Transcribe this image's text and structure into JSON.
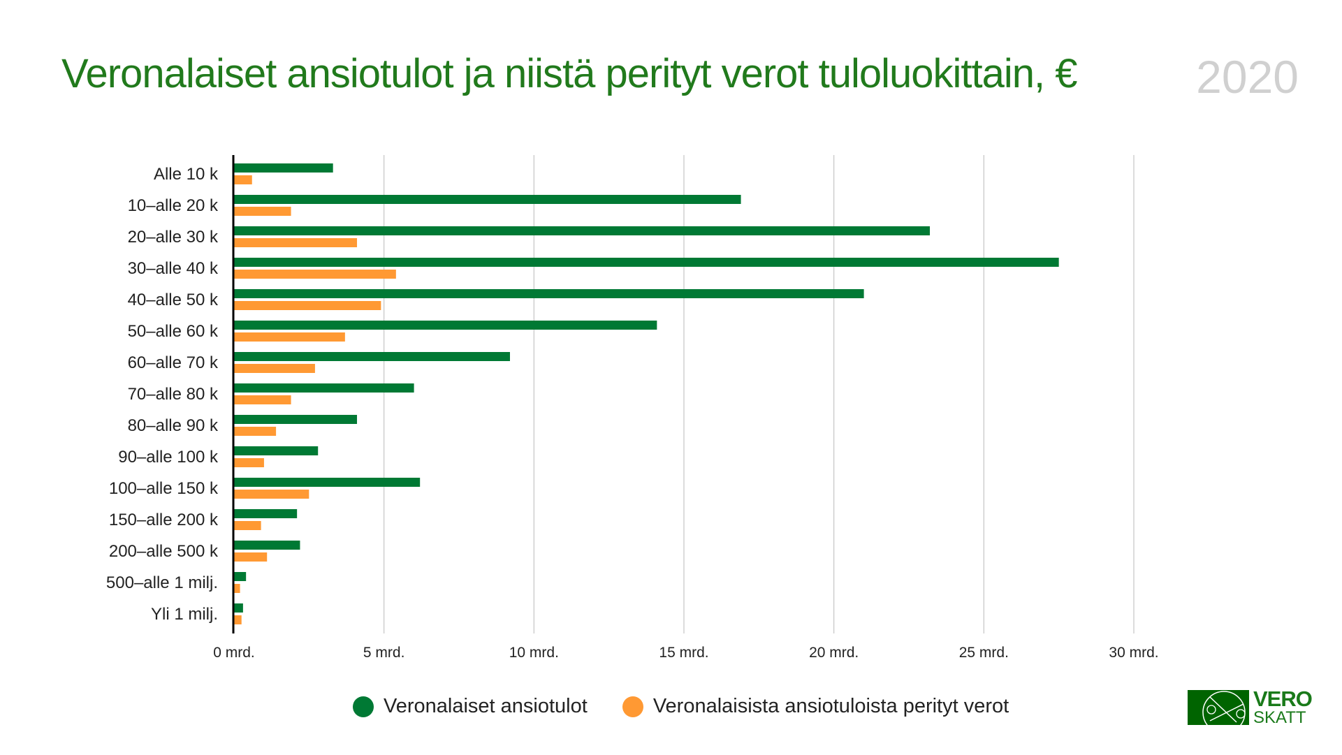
{
  "title": "Veronalaiset ansiotulot ja niistä perityt verot tuloluokittain, €",
  "year": "2020",
  "logo": {
    "line1": "VERO",
    "line2": "SKATT"
  },
  "colors": {
    "income": "#007934",
    "tax": "#ff9933",
    "title": "#217a1c"
  },
  "chart_data": {
    "type": "bar",
    "orientation": "horizontal",
    "categories": [
      "Alle 10 k",
      "10–alle 20 k",
      "20–alle 30 k",
      "30–alle 40 k",
      "40–alle 50 k",
      "50–alle 60 k",
      "60–alle 70 k",
      "70–alle 80 k",
      "80–alle 90 k",
      "90–alle 100 k",
      "100–alle 150 k",
      "150–alle 200 k",
      "200–alle 500 k",
      "500–alle 1 milj.",
      "Yli 1 milj."
    ],
    "series": [
      {
        "name": "Veronalaiset ansiotulot",
        "values": [
          3.3,
          16.9,
          23.2,
          27.5,
          21.0,
          14.1,
          9.2,
          6.0,
          4.1,
          2.8,
          6.2,
          2.1,
          2.2,
          0.4,
          0.3
        ]
      },
      {
        "name": "Veronalaisista ansiotuloista perityt verot",
        "values": [
          0.6,
          1.9,
          4.1,
          5.4,
          4.9,
          3.7,
          2.7,
          1.9,
          1.4,
          1.0,
          2.5,
          0.9,
          1.1,
          0.2,
          0.25
        ]
      }
    ],
    "xlim": [
      0,
      30
    ],
    "xticks": [
      0,
      5,
      10,
      15,
      20,
      25,
      30
    ],
    "xtick_labels": [
      "0 mrd.",
      "5 mrd.",
      "10 mrd.",
      "15 mrd.",
      "20 mrd.",
      "25 mrd.",
      "30 mrd."
    ],
    "grid": true,
    "legend": "bottom"
  }
}
